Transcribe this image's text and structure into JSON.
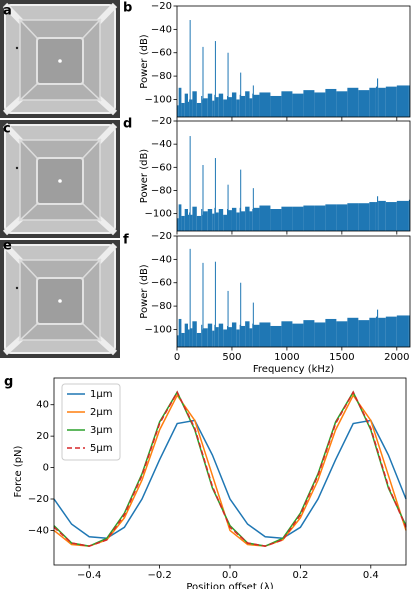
{
  "panel_labels": [
    "a",
    "b",
    "c",
    "d",
    "e",
    "f",
    "g"
  ],
  "chart_data": [
    {
      "type": "area",
      "color": "#1f77b4",
      "ylabel": "Power (dB)",
      "x": [
        0,
        15,
        40,
        70,
        100,
        110,
        115,
        120,
        140,
        180,
        220,
        228,
        232,
        240,
        280,
        320,
        340,
        345,
        350,
        380,
        420,
        455,
        460,
        465,
        500,
        540,
        570,
        575,
        580,
        620,
        660,
        685,
        690,
        695,
        750,
        850,
        950,
        1050,
        1150,
        1250,
        1350,
        1450,
        1550,
        1650,
        1750,
        1810,
        1820,
        1830,
        1900,
        2000,
        2110
      ],
      "values": [
        -105,
        -90,
        -103,
        -95,
        -102,
        -100,
        -32,
        -100,
        -93,
        -103,
        -97,
        -100,
        -55,
        -99,
        -95,
        -101,
        -96,
        -50,
        -98,
        -95,
        -100,
        -97,
        -60,
        -98,
        -94,
        -100,
        -96,
        -77,
        -97,
        -93,
        -99,
        -95,
        -88,
        -96,
        -94,
        -97,
        -93,
        -95,
        -92,
        -94,
        -91,
        -93,
        -90,
        -92,
        -90,
        -89,
        -82,
        -90,
        -89,
        -88,
        -88
      ],
      "xlim": [
        0,
        2120
      ],
      "ylim": [
        -115,
        -20
      ],
      "xticks": [
        0,
        500,
        1000,
        1500,
        2000
      ],
      "yticks": [
        {
          "value": -100,
          "label": "−100"
        },
        {
          "value": -80,
          "label": "−80"
        },
        {
          "value": -60,
          "label": "−60"
        },
        {
          "value": -40,
          "label": "−40"
        },
        {
          "value": -20,
          "label": "−20"
        }
      ]
    },
    {
      "type": "area",
      "color": "#1f77b4",
      "ylabel": "Power (dB)",
      "x": [
        0,
        15,
        40,
        70,
        100,
        110,
        115,
        120,
        140,
        180,
        220,
        228,
        232,
        240,
        280,
        320,
        340,
        345,
        350,
        380,
        420,
        455,
        460,
        465,
        500,
        540,
        570,
        575,
        580,
        620,
        660,
        685,
        690,
        695,
        750,
        850,
        950,
        1050,
        1150,
        1250,
        1350,
        1450,
        1550,
        1650,
        1750,
        1810,
        1820,
        1830,
        1900,
        2000,
        2110
      ],
      "values": [
        -104,
        -92,
        -102,
        -96,
        -101,
        -99,
        -33,
        -101,
        -94,
        -102,
        -96,
        -101,
        -58,
        -98,
        -96,
        -100,
        -95,
        -52,
        -99,
        -96,
        -101,
        -96,
        -75,
        -97,
        -95,
        -99,
        -95,
        -62,
        -98,
        -94,
        -98,
        -96,
        -78,
        -95,
        -93,
        -96,
        -94,
        -94,
        -93,
        -93,
        -92,
        -92,
        -91,
        -91,
        -90,
        -90,
        -85,
        -89,
        -90,
        -89,
        -88
      ],
      "xlim": [
        0,
        2120
      ],
      "ylim": [
        -115,
        -20
      ],
      "xticks": [
        0,
        500,
        1000,
        1500,
        2000
      ],
      "yticks": [
        {
          "value": -100,
          "label": "−100"
        },
        {
          "value": -80,
          "label": "−80"
        },
        {
          "value": -60,
          "label": "−60"
        },
        {
          "value": -40,
          "label": "−40"
        },
        {
          "value": -20,
          "label": "−20"
        }
      ]
    },
    {
      "type": "area",
      "color": "#1f77b4",
      "ylabel": "Power (dB)",
      "xlabel": "Frequency (kHz)",
      "x": [
        0,
        15,
        40,
        70,
        100,
        110,
        115,
        120,
        140,
        180,
        220,
        228,
        232,
        240,
        280,
        320,
        340,
        345,
        350,
        380,
        420,
        455,
        460,
        465,
        500,
        540,
        570,
        575,
        580,
        620,
        660,
        685,
        690,
        695,
        750,
        850,
        950,
        1050,
        1150,
        1250,
        1350,
        1450,
        1550,
        1650,
        1750,
        1810,
        1820,
        1830,
        1900,
        2000,
        2110
      ],
      "values": [
        -105,
        -91,
        -103,
        -95,
        -100,
        -100,
        -31,
        -99,
        -93,
        -103,
        -96,
        -100,
        -43,
        -99,
        -95,
        -101,
        -96,
        -42,
        -98,
        -95,
        -100,
        -97,
        -67,
        -98,
        -94,
        -100,
        -96,
        -60,
        -97,
        -93,
        -99,
        -95,
        -77,
        -96,
        -94,
        -97,
        -93,
        -95,
        -92,
        -94,
        -91,
        -93,
        -90,
        -92,
        -90,
        -89,
        -83,
        -90,
        -89,
        -88,
        -88
      ],
      "xlim": [
        0,
        2120
      ],
      "ylim": [
        -115,
        -20
      ],
      "xticks": [
        0,
        500,
        1000,
        1500,
        2000
      ],
      "yticks": [
        {
          "value": -100,
          "label": "−100"
        },
        {
          "value": -80,
          "label": "−80"
        },
        {
          "value": -60,
          "label": "−60"
        },
        {
          "value": -40,
          "label": "−40"
        },
        {
          "value": -20,
          "label": "−20"
        }
      ]
    },
    {
      "type": "line",
      "xlabel": "Position offset (λ)",
      "ylabel": "Force (pN)",
      "legend": "upper left",
      "x": [
        -0.5,
        -0.45,
        -0.4,
        -0.35,
        -0.3,
        -0.25,
        -0.2,
        -0.15,
        -0.1,
        -0.05,
        0,
        0.05,
        0.1,
        0.15,
        0.2,
        0.25,
        0.3,
        0.35,
        0.4,
        0.45,
        0.5
      ],
      "series": [
        {
          "name": "1μm",
          "color": "#1f77b4",
          "linestyle": "solid",
          "values": [
            -20,
            -36,
            -44,
            -45,
            -38,
            -20,
            5,
            28,
            30,
            8,
            -20,
            -36,
            -44,
            -45,
            -38,
            -20,
            5,
            28,
            30,
            8,
            -20
          ]
        },
        {
          "name": "2μm",
          "color": "#ff7f0e",
          "linestyle": "solid",
          "values": [
            -40,
            -49,
            -50,
            -46,
            -32,
            -8,
            24,
            46,
            30,
            -5,
            -40,
            -49,
            -50,
            -46,
            -32,
            -8,
            24,
            46,
            30,
            -5,
            -40
          ]
        },
        {
          "name": "3μm",
          "color": "#2ca02c",
          "linestyle": "solid",
          "values": [
            -37,
            -48,
            -50,
            -45,
            -29,
            -4,
            29,
            48,
            24,
            -13,
            -37,
            -48,
            -50,
            -45,
            -29,
            -4,
            29,
            48,
            24,
            -13,
            -37
          ]
        },
        {
          "name": "5μm",
          "color": "#d62728",
          "linestyle": "dashed",
          "values": [
            -38,
            -48,
            -50,
            -46,
            -30,
            -5,
            28,
            48,
            25,
            -12,
            -38,
            -48,
            -50,
            -46,
            -30,
            -5,
            28,
            48,
            25,
            -12,
            -38
          ]
        }
      ],
      "xlim": [
        -0.5,
        0.5
      ],
      "ylim": [
        -62,
        57
      ],
      "xticks": [
        {
          "value": -0.4,
          "label": "−0.4"
        },
        {
          "value": -0.2,
          "label": "−0.2"
        },
        {
          "value": 0,
          "label": "0.0"
        },
        0.2,
        0.4
      ],
      "yticks": [
        {
          "value": -40,
          "label": "−40"
        },
        {
          "value": -20,
          "label": "−20"
        },
        0,
        20,
        40
      ]
    }
  ]
}
